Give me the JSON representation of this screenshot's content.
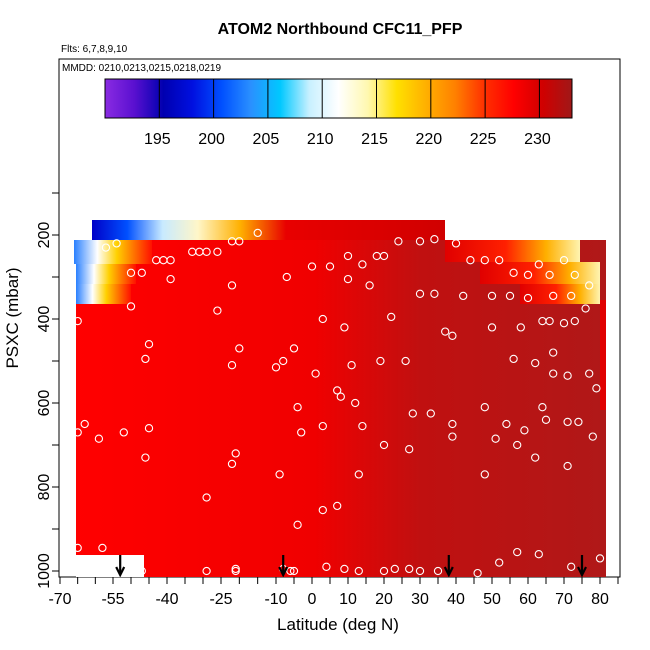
{
  "chart_data": {
    "type": "heatmap",
    "title": "ATOM2 Northbound CFC11_PFP",
    "subtitle_flights": "Flts: 6,7,8,9,10",
    "subtitle_dates": "MMDD: 0210,0213,0215,0218,0219",
    "xlabel": "Latitude (deg N)",
    "ylabel": "PSXC (mbar)",
    "xlim": [
      -70,
      85
    ],
    "ylim": [
      1000,
      0
    ],
    "x_ticks": [
      -70,
      -55,
      -40,
      -25,
      -10,
      0,
      10,
      20,
      30,
      40,
      50,
      60,
      70,
      80
    ],
    "y_ticks": [
      200,
      400,
      600,
      800,
      1000
    ],
    "colorbar": {
      "ticks": [
        195,
        200,
        205,
        210,
        215,
        220,
        225,
        230
      ],
      "range": [
        190,
        233
      ],
      "colors": [
        "#8a2be2",
        "#5a10d0",
        "#0000b0",
        "#0010e0",
        "#0050ff",
        "#2a90ff",
        "#00c8ff",
        "#c8f0ff",
        "#ffffff",
        "#fff8b0",
        "#ffe000",
        "#ffb000",
        "#ff8000",
        "#ff3000",
        "#ff0000",
        "#d00000",
        "#a01818"
      ]
    },
    "field": [
      {
        "lat": [
          -57,
          36
        ],
        "p": [
          170,
          210
        ],
        "values": [
          195,
          205,
          213,
          222,
          228,
          231
        ]
      },
      {
        "lat": [
          -58,
          -50
        ],
        "p": [
          210,
          260
        ],
        "values": [
          205,
          212,
          222,
          230
        ]
      },
      {
        "lat": [
          -58,
          -53
        ],
        "p": [
          260,
          300
        ],
        "values": [
          208,
          214,
          222
        ]
      },
      {
        "lat": [
          -57,
          -52
        ],
        "p": [
          300,
          350
        ],
        "values": [
          216,
          222,
          228
        ]
      },
      {
        "lat": [
          36,
          72
        ],
        "p": [
          210,
          260
        ],
        "values": [
          231,
          228,
          222,
          216
        ]
      },
      {
        "lat": [
          50,
          80
        ],
        "p": [
          260,
          380
        ],
        "values": [
          231,
          226,
          220,
          214
        ]
      }
    ],
    "profile_markers_lat": [
      -53,
      -8,
      38,
      75
    ],
    "sample_points": [
      {
        "lat": -57,
        "p": 230
      },
      {
        "lat": -54,
        "p": 220
      },
      {
        "lat": -50,
        "p": 290
      },
      {
        "lat": -47,
        "p": 290
      },
      {
        "lat": -43,
        "p": 260
      },
      {
        "lat": -41,
        "p": 260
      },
      {
        "lat": -39,
        "p": 260
      },
      {
        "lat": -33,
        "p": 240
      },
      {
        "lat": -31,
        "p": 240
      },
      {
        "lat": -29,
        "p": 240
      },
      {
        "lat": -26,
        "p": 240
      },
      {
        "lat": -22,
        "p": 215
      },
      {
        "lat": -20,
        "p": 215
      },
      {
        "lat": -15,
        "p": 195
      },
      {
        "lat": -7,
        "p": 300
      },
      {
        "lat": 0,
        "p": 275
      },
      {
        "lat": 5,
        "p": 275
      },
      {
        "lat": 10,
        "p": 250
      },
      {
        "lat": 14,
        "p": 270
      },
      {
        "lat": 18,
        "p": 250
      },
      {
        "lat": 20,
        "p": 250
      },
      {
        "lat": 24,
        "p": 215
      },
      {
        "lat": 30,
        "p": 215
      },
      {
        "lat": 34,
        "p": 210
      },
      {
        "lat": 40,
        "p": 220
      },
      {
        "lat": 44,
        "p": 260
      },
      {
        "lat": 48,
        "p": 260
      },
      {
        "lat": 52,
        "p": 260
      },
      {
        "lat": 56,
        "p": 290
      },
      {
        "lat": 60,
        "p": 295
      },
      {
        "lat": 63,
        "p": 270
      },
      {
        "lat": 66,
        "p": 295
      },
      {
        "lat": 70,
        "p": 260
      },
      {
        "lat": 73,
        "p": 295
      },
      {
        "lat": 77,
        "p": 320
      },
      {
        "lat": -50,
        "p": 370
      },
      {
        "lat": -39,
        "p": 305
      },
      {
        "lat": -26,
        "p": 380
      },
      {
        "lat": -22,
        "p": 320
      },
      {
        "lat": 10,
        "p": 305
      },
      {
        "lat": 16,
        "p": 320
      },
      {
        "lat": 30,
        "p": 340
      },
      {
        "lat": 34,
        "p": 340
      },
      {
        "lat": 42,
        "p": 345
      },
      {
        "lat": 50,
        "p": 345
      },
      {
        "lat": 55,
        "p": 345
      },
      {
        "lat": 60,
        "p": 350
      },
      {
        "lat": 67,
        "p": 345
      },
      {
        "lat": 72,
        "p": 345
      },
      {
        "lat": 76,
        "p": 375
      },
      {
        "lat": 3,
        "p": 400
      },
      {
        "lat": 9,
        "p": 420
      },
      {
        "lat": 22,
        "p": 395
      },
      {
        "lat": 37,
        "p": 430
      },
      {
        "lat": 39,
        "p": 440
      },
      {
        "lat": 50,
        "p": 420
      },
      {
        "lat": 58,
        "p": 420
      },
      {
        "lat": 64,
        "p": 405
      },
      {
        "lat": 66,
        "p": 405
      },
      {
        "lat": 70,
        "p": 410
      },
      {
        "lat": 73,
        "p": 405
      },
      {
        "lat": -65,
        "p": 405
      },
      {
        "lat": -45,
        "p": 460
      },
      {
        "lat": -20,
        "p": 470
      },
      {
        "lat": -8,
        "p": 500
      },
      {
        "lat": -5,
        "p": 470
      },
      {
        "lat": 1,
        "p": 530
      },
      {
        "lat": 11,
        "p": 510
      },
      {
        "lat": 19,
        "p": 500
      },
      {
        "lat": 26,
        "p": 500
      },
      {
        "lat": 56,
        "p": 495
      },
      {
        "lat": 62,
        "p": 505
      },
      {
        "lat": 67,
        "p": 480
      },
      {
        "lat": 67,
        "p": 530
      },
      {
        "lat": 71,
        "p": 535
      },
      {
        "lat": 77,
        "p": 530
      },
      {
        "lat": 79,
        "p": 565
      },
      {
        "lat": -46,
        "p": 495
      },
      {
        "lat": -22,
        "p": 510
      },
      {
        "lat": -10,
        "p": 515
      },
      {
        "lat": 7,
        "p": 570
      },
      {
        "lat": 8,
        "p": 585
      },
      {
        "lat": 12,
        "p": 600
      },
      {
        "lat": -4,
        "p": 610
      },
      {
        "lat": 28,
        "p": 625
      },
      {
        "lat": 33,
        "p": 625
      },
      {
        "lat": 48,
        "p": 610
      },
      {
        "lat": 64,
        "p": 610
      },
      {
        "lat": -63,
        "p": 650
      },
      {
        "lat": -65,
        "p": 670
      },
      {
        "lat": -59,
        "p": 685
      },
      {
        "lat": -52,
        "p": 670
      },
      {
        "lat": -45,
        "p": 660
      },
      {
        "lat": -3,
        "p": 670
      },
      {
        "lat": 3,
        "p": 655
      },
      {
        "lat": 14,
        "p": 655
      },
      {
        "lat": 39,
        "p": 650
      },
      {
        "lat": 39,
        "p": 680
      },
      {
        "lat": 51,
        "p": 685
      },
      {
        "lat": 54,
        "p": 650
      },
      {
        "lat": 57,
        "p": 700
      },
      {
        "lat": 59,
        "p": 665
      },
      {
        "lat": 65,
        "p": 640
      },
      {
        "lat": 71,
        "p": 645
      },
      {
        "lat": 74,
        "p": 645
      },
      {
        "lat": 78,
        "p": 680
      },
      {
        "lat": -46,
        "p": 730
      },
      {
        "lat": -21,
        "p": 720
      },
      {
        "lat": -22,
        "p": 745
      },
      {
        "lat": 20,
        "p": 700
      },
      {
        "lat": 27,
        "p": 710
      },
      {
        "lat": 48,
        "p": 770
      },
      {
        "lat": 62,
        "p": 730
      },
      {
        "lat": 71,
        "p": 750
      },
      {
        "lat": -9,
        "p": 770
      },
      {
        "lat": 13,
        "p": 770
      },
      {
        "lat": -29,
        "p": 825
      },
      {
        "lat": 7,
        "p": 845
      },
      {
        "lat": 3,
        "p": 855
      },
      {
        "lat": -4,
        "p": 890
      },
      {
        "lat": -65,
        "p": 945
      },
      {
        "lat": -58,
        "p": 945
      },
      {
        "lat": 57,
        "p": 955
      },
      {
        "lat": 63,
        "p": 960
      },
      {
        "lat": -47,
        "p": 1000
      },
      {
        "lat": -29,
        "p": 1000
      },
      {
        "lat": -21,
        "p": 995
      },
      {
        "lat": -21,
        "p": 1000
      },
      {
        "lat": -8,
        "p": 995
      },
      {
        "lat": -6,
        "p": 1000
      },
      {
        "lat": -5,
        "p": 1000
      },
      {
        "lat": 4,
        "p": 990
      },
      {
        "lat": 9,
        "p": 995
      },
      {
        "lat": 13,
        "p": 1000
      },
      {
        "lat": 20,
        "p": 1000
      },
      {
        "lat": 23,
        "p": 995
      },
      {
        "lat": 27,
        "p": 995
      },
      {
        "lat": 30,
        "p": 1000
      },
      {
        "lat": 35,
        "p": 1000
      },
      {
        "lat": 46,
        "p": 1005
      },
      {
        "lat": 52,
        "p": 980
      },
      {
        "lat": 72,
        "p": 990
      },
      {
        "lat": 80,
        "p": 970
      }
    ]
  }
}
